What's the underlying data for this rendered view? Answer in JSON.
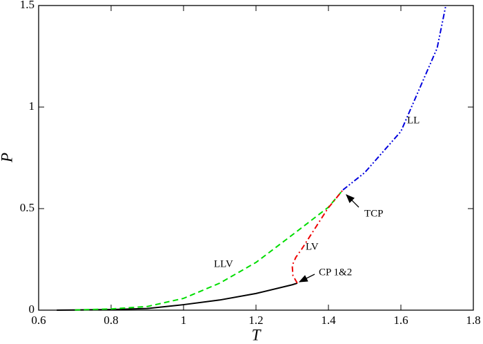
{
  "chart_data": {
    "type": "line",
    "xlabel": "T",
    "ylabel": "P",
    "xlim": [
      0.6,
      1.8
    ],
    "ylim": [
      0,
      1.5
    ],
    "xticks": [
      0.6,
      0.8,
      1,
      1.2,
      1.4,
      1.6,
      1.8
    ],
    "yticks": [
      0,
      0.5,
      1,
      1.5
    ],
    "series": [
      {
        "color": "#000000",
        "dash": "none",
        "x": [
          0.65,
          0.7,
          0.8,
          0.9,
          1.0,
          1.1,
          1.2,
          1.3,
          1.314
        ],
        "values": [
          0,
          0.001,
          0.003,
          0.008,
          0.027,
          0.05,
          0.082,
          0.125,
          0.133
        ]
      },
      {
        "color": "#00dd00",
        "dash": "8,5",
        "x": [
          0.7,
          0.8,
          0.9,
          1.0,
          1.1,
          1.2,
          1.3,
          1.4,
          1.44
        ],
        "values": [
          0.001,
          0.006,
          0.018,
          0.058,
          0.133,
          0.235,
          0.37,
          0.507,
          0.592
        ]
      },
      {
        "color": "#ee0000",
        "dash": "8,4,2,4",
        "x": [
          1.314,
          1.302,
          1.3,
          1.31,
          1.326,
          1.362,
          1.398,
          1.44
        ],
        "values": [
          0.133,
          0.17,
          0.22,
          0.26,
          0.3,
          0.4,
          0.5,
          0.592
        ]
      },
      {
        "color": "#0000dd",
        "dash": "8,3,2,3,2,3",
        "x": [
          1.44,
          1.5,
          1.6,
          1.7,
          1.724
        ],
        "values": [
          0.592,
          0.677,
          0.88,
          1.29,
          1.5
        ]
      }
    ],
    "annotations": [
      "LL",
      "TCP",
      "LV",
      "LLV",
      "CP 1&2"
    ]
  }
}
